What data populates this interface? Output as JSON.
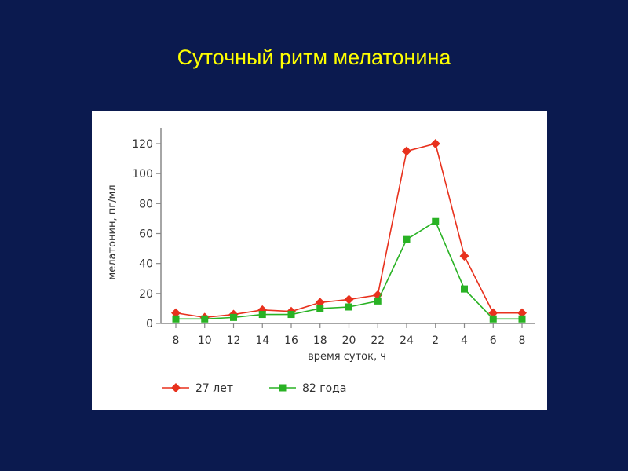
{
  "slide": {
    "title": "Суточный ритм мелатонина"
  },
  "colors": {
    "background": "#0b1a4f",
    "title": "#ffff00",
    "panel": "#ffffff",
    "axis": "#888888"
  },
  "chart_data": {
    "type": "line",
    "categories": [
      "8",
      "10",
      "12",
      "14",
      "16",
      "18",
      "20",
      "22",
      "24",
      "2",
      "4",
      "6",
      "8"
    ],
    "yticks": [
      "0",
      "20",
      "40",
      "60",
      "80",
      "100",
      "120"
    ],
    "ylim": [
      0,
      125
    ],
    "xlabel": "время суток, ч",
    "ylabel": "мелатонин, пг/мл",
    "grid": false,
    "legend_position": "bottom-left",
    "series": [
      {
        "name": "27 лет",
        "color": "#e8311d",
        "marker": "diamond",
        "values": [
          7,
          4,
          6,
          9,
          8,
          14,
          16,
          19,
          115,
          120,
          45,
          7,
          7
        ]
      },
      {
        "name": "82 года",
        "color": "#29b224",
        "marker": "square",
        "values": [
          3,
          3,
          4,
          6,
          6,
          10,
          11,
          15,
          56,
          68,
          23,
          3,
          3
        ]
      }
    ]
  }
}
